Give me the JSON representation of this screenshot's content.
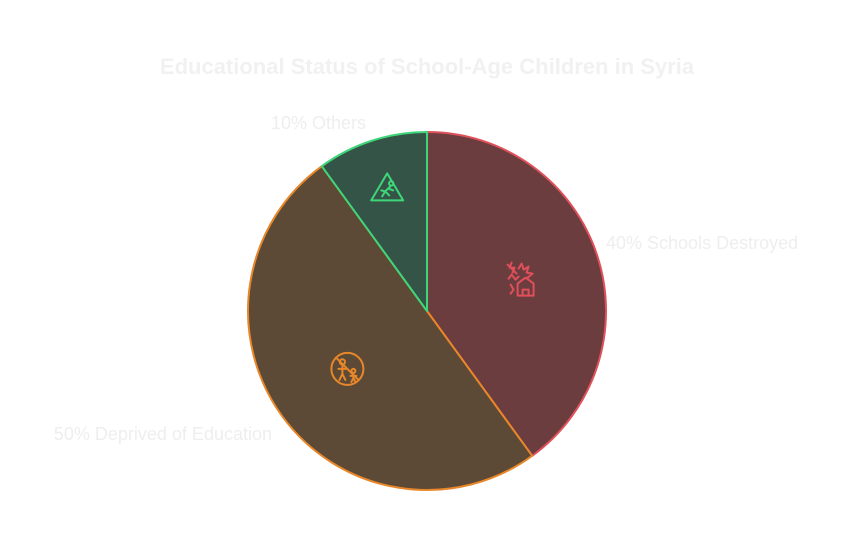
{
  "chart_data": {
    "type": "pie",
    "title": "Educational Status of School-Age Children in Syria",
    "slices": [
      {
        "label": "40% Schools Destroyed",
        "value": 40,
        "fill": "#6b3d3f",
        "stroke": "#e0505a",
        "icon": "bombed-school-icon"
      },
      {
        "label": "50% Deprived of Education",
        "value": 50,
        "fill": "#5c4a36",
        "stroke": "#e8872a",
        "icon": "no-children-icon"
      },
      {
        "label": "10% Others",
        "value": 10,
        "fill": "#345447",
        "stroke": "#3fd67a",
        "icon": "warning-sign-icon"
      }
    ],
    "start_angle_deg": 0,
    "direction": "clockwise",
    "legend": "none"
  },
  "colors": {
    "background": "#ffffff",
    "title_text": "#f1f1f1",
    "label_text": "#eeeeee"
  }
}
